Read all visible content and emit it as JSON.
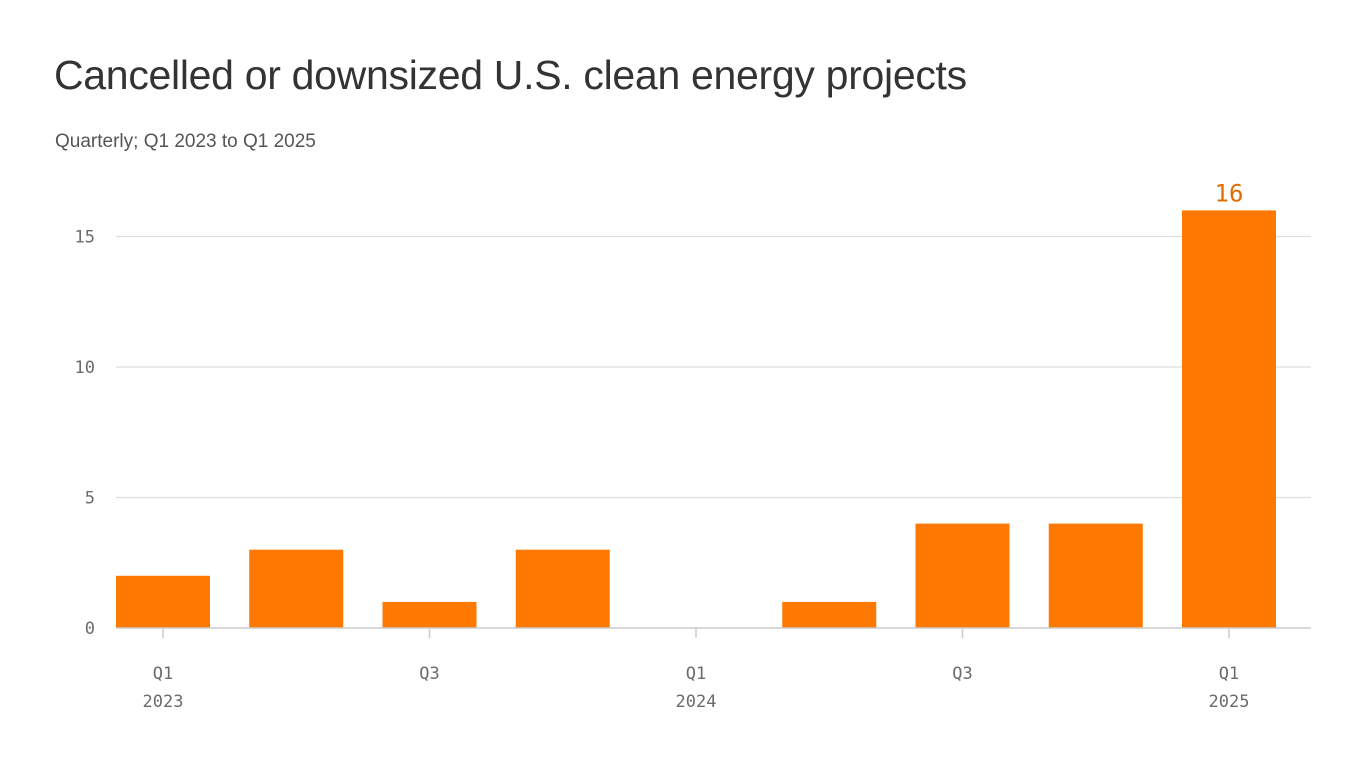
{
  "title": "Cancelled or downsized U.S. clean energy projects",
  "subtitle": "Quarterly; Q1 2023 to Q1 2025",
  "colors": {
    "bar": "#ff7900",
    "label": "#e36c00",
    "grid": "#dedede",
    "axis": "#cccccc",
    "text": "#333333"
  },
  "chart_data": {
    "type": "bar",
    "categories": [
      "Q1 2023",
      "Q2 2023",
      "Q3 2023",
      "Q4 2023",
      "Q1 2024",
      "Q2 2024",
      "Q3 2024",
      "Q4 2024",
      "Q1 2025"
    ],
    "values": [
      2,
      3,
      1,
      3,
      0,
      1,
      4,
      4,
      16
    ],
    "ylim": [
      0,
      16
    ],
    "y_ticks": [
      "0",
      "5",
      "10",
      "15"
    ],
    "x_tick_labels": [
      {
        "category": "Q1 2023",
        "line1": "Q1",
        "line2": "2023"
      },
      {
        "category": "Q3 2023",
        "line1": "Q3",
        "line2": ""
      },
      {
        "category": "Q1 2024",
        "line1": "Q1",
        "line2": "2024"
      },
      {
        "category": "Q3 2024",
        "line1": "Q3",
        "line2": ""
      },
      {
        "category": "Q1 2025",
        "line1": "Q1",
        "line2": "2025"
      }
    ],
    "annotations": [
      {
        "category": "Q1 2025",
        "text": "16"
      }
    ],
    "grid": true,
    "xlabel": "",
    "ylabel": ""
  }
}
